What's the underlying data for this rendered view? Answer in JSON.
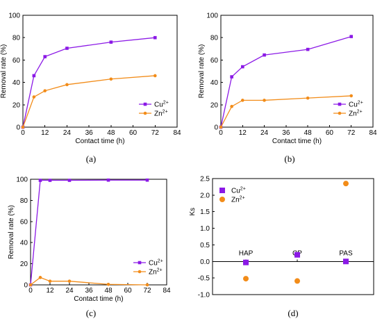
{
  "colors": {
    "cu": "#8B19E6",
    "zn": "#F28C19"
  },
  "chart_data": [
    {
      "panel": "(a)",
      "type": "line",
      "xlabel": "Contact time (h)",
      "ylabel": "Removal rate (%)",
      "xlim": [
        0,
        84
      ],
      "ylim": [
        0,
        100
      ],
      "xticks": [
        0,
        12,
        24,
        36,
        48,
        60,
        72,
        84
      ],
      "yticks": [
        0,
        20,
        40,
        60,
        80,
        100
      ],
      "x": [
        0,
        6,
        12,
        24,
        48,
        72
      ],
      "series": [
        {
          "name": "Cu",
          "sup": "2+",
          "color_key": "cu",
          "marker": "square",
          "values": [
            0,
            46,
            63,
            70.5,
            76,
            80
          ]
        },
        {
          "name": "Zn",
          "sup": "2+",
          "color_key": "zn",
          "marker": "circle",
          "values": [
            0,
            27,
            32.5,
            38,
            43,
            46
          ]
        }
      ],
      "legend": "bottom-right"
    },
    {
      "panel": "(b)",
      "type": "line",
      "xlabel": "Contact time (h)",
      "ylabel": "Removal rate (%)",
      "xlim": [
        0,
        84
      ],
      "ylim": [
        0,
        100
      ],
      "xticks": [
        0,
        12,
        24,
        36,
        48,
        60,
        72,
        84
      ],
      "yticks": [
        0,
        20,
        40,
        60,
        80,
        100
      ],
      "x": [
        0,
        6,
        12,
        24,
        48,
        72
      ],
      "series": [
        {
          "name": "Cu",
          "sup": "2+",
          "color_key": "cu",
          "marker": "square",
          "values": [
            0,
            45,
            54,
            64.5,
            69.5,
            81
          ]
        },
        {
          "name": "Zn",
          "sup": "2+",
          "color_key": "zn",
          "marker": "circle",
          "values": [
            0,
            18.5,
            24,
            24,
            26,
            28
          ]
        }
      ],
      "legend": "bottom-right"
    },
    {
      "panel": "(c)",
      "type": "line",
      "xlabel": "Contact time (h)",
      "ylabel": "Removal rate (%)",
      "xlim": [
        0,
        84
      ],
      "ylim": [
        0,
        100
      ],
      "xticks": [
        0,
        12,
        24,
        36,
        48,
        60,
        72,
        84
      ],
      "yticks": [
        0,
        20,
        40,
        60,
        80,
        100
      ],
      "x": [
        0,
        6,
        12,
        24,
        48,
        72
      ],
      "series": [
        {
          "name": "Cu",
          "sup": "2+",
          "color_key": "cu",
          "marker": "square",
          "values": [
            0,
            99,
            99,
            99,
            99.2,
            99.2
          ]
        },
        {
          "name": "Zn",
          "sup": "2+",
          "color_key": "zn",
          "marker": "circle",
          "values": [
            0,
            7,
            3.5,
            3.5,
            0.5,
            0
          ]
        }
      ],
      "legend": "bottom-right"
    },
    {
      "panel": "(d)",
      "type": "scatter",
      "ylabel": "Ks",
      "categories": [
        "HAP",
        "CP",
        "PAS"
      ],
      "ylim": [
        -1.0,
        2.5
      ],
      "yticks": [
        -1.0,
        -0.5,
        0.0,
        0.5,
        1.0,
        1.5,
        2.0,
        2.5
      ],
      "series": [
        {
          "name": "Cu",
          "sup": "2+",
          "color_key": "cu",
          "marker": "square",
          "values": [
            -0.03,
            0.2,
            0.0
          ]
        },
        {
          "name": "Zn",
          "sup": "2+",
          "color_key": "zn",
          "marker": "circle",
          "values": [
            -0.52,
            -0.59,
            2.35
          ]
        }
      ],
      "legend": "top-left"
    }
  ]
}
